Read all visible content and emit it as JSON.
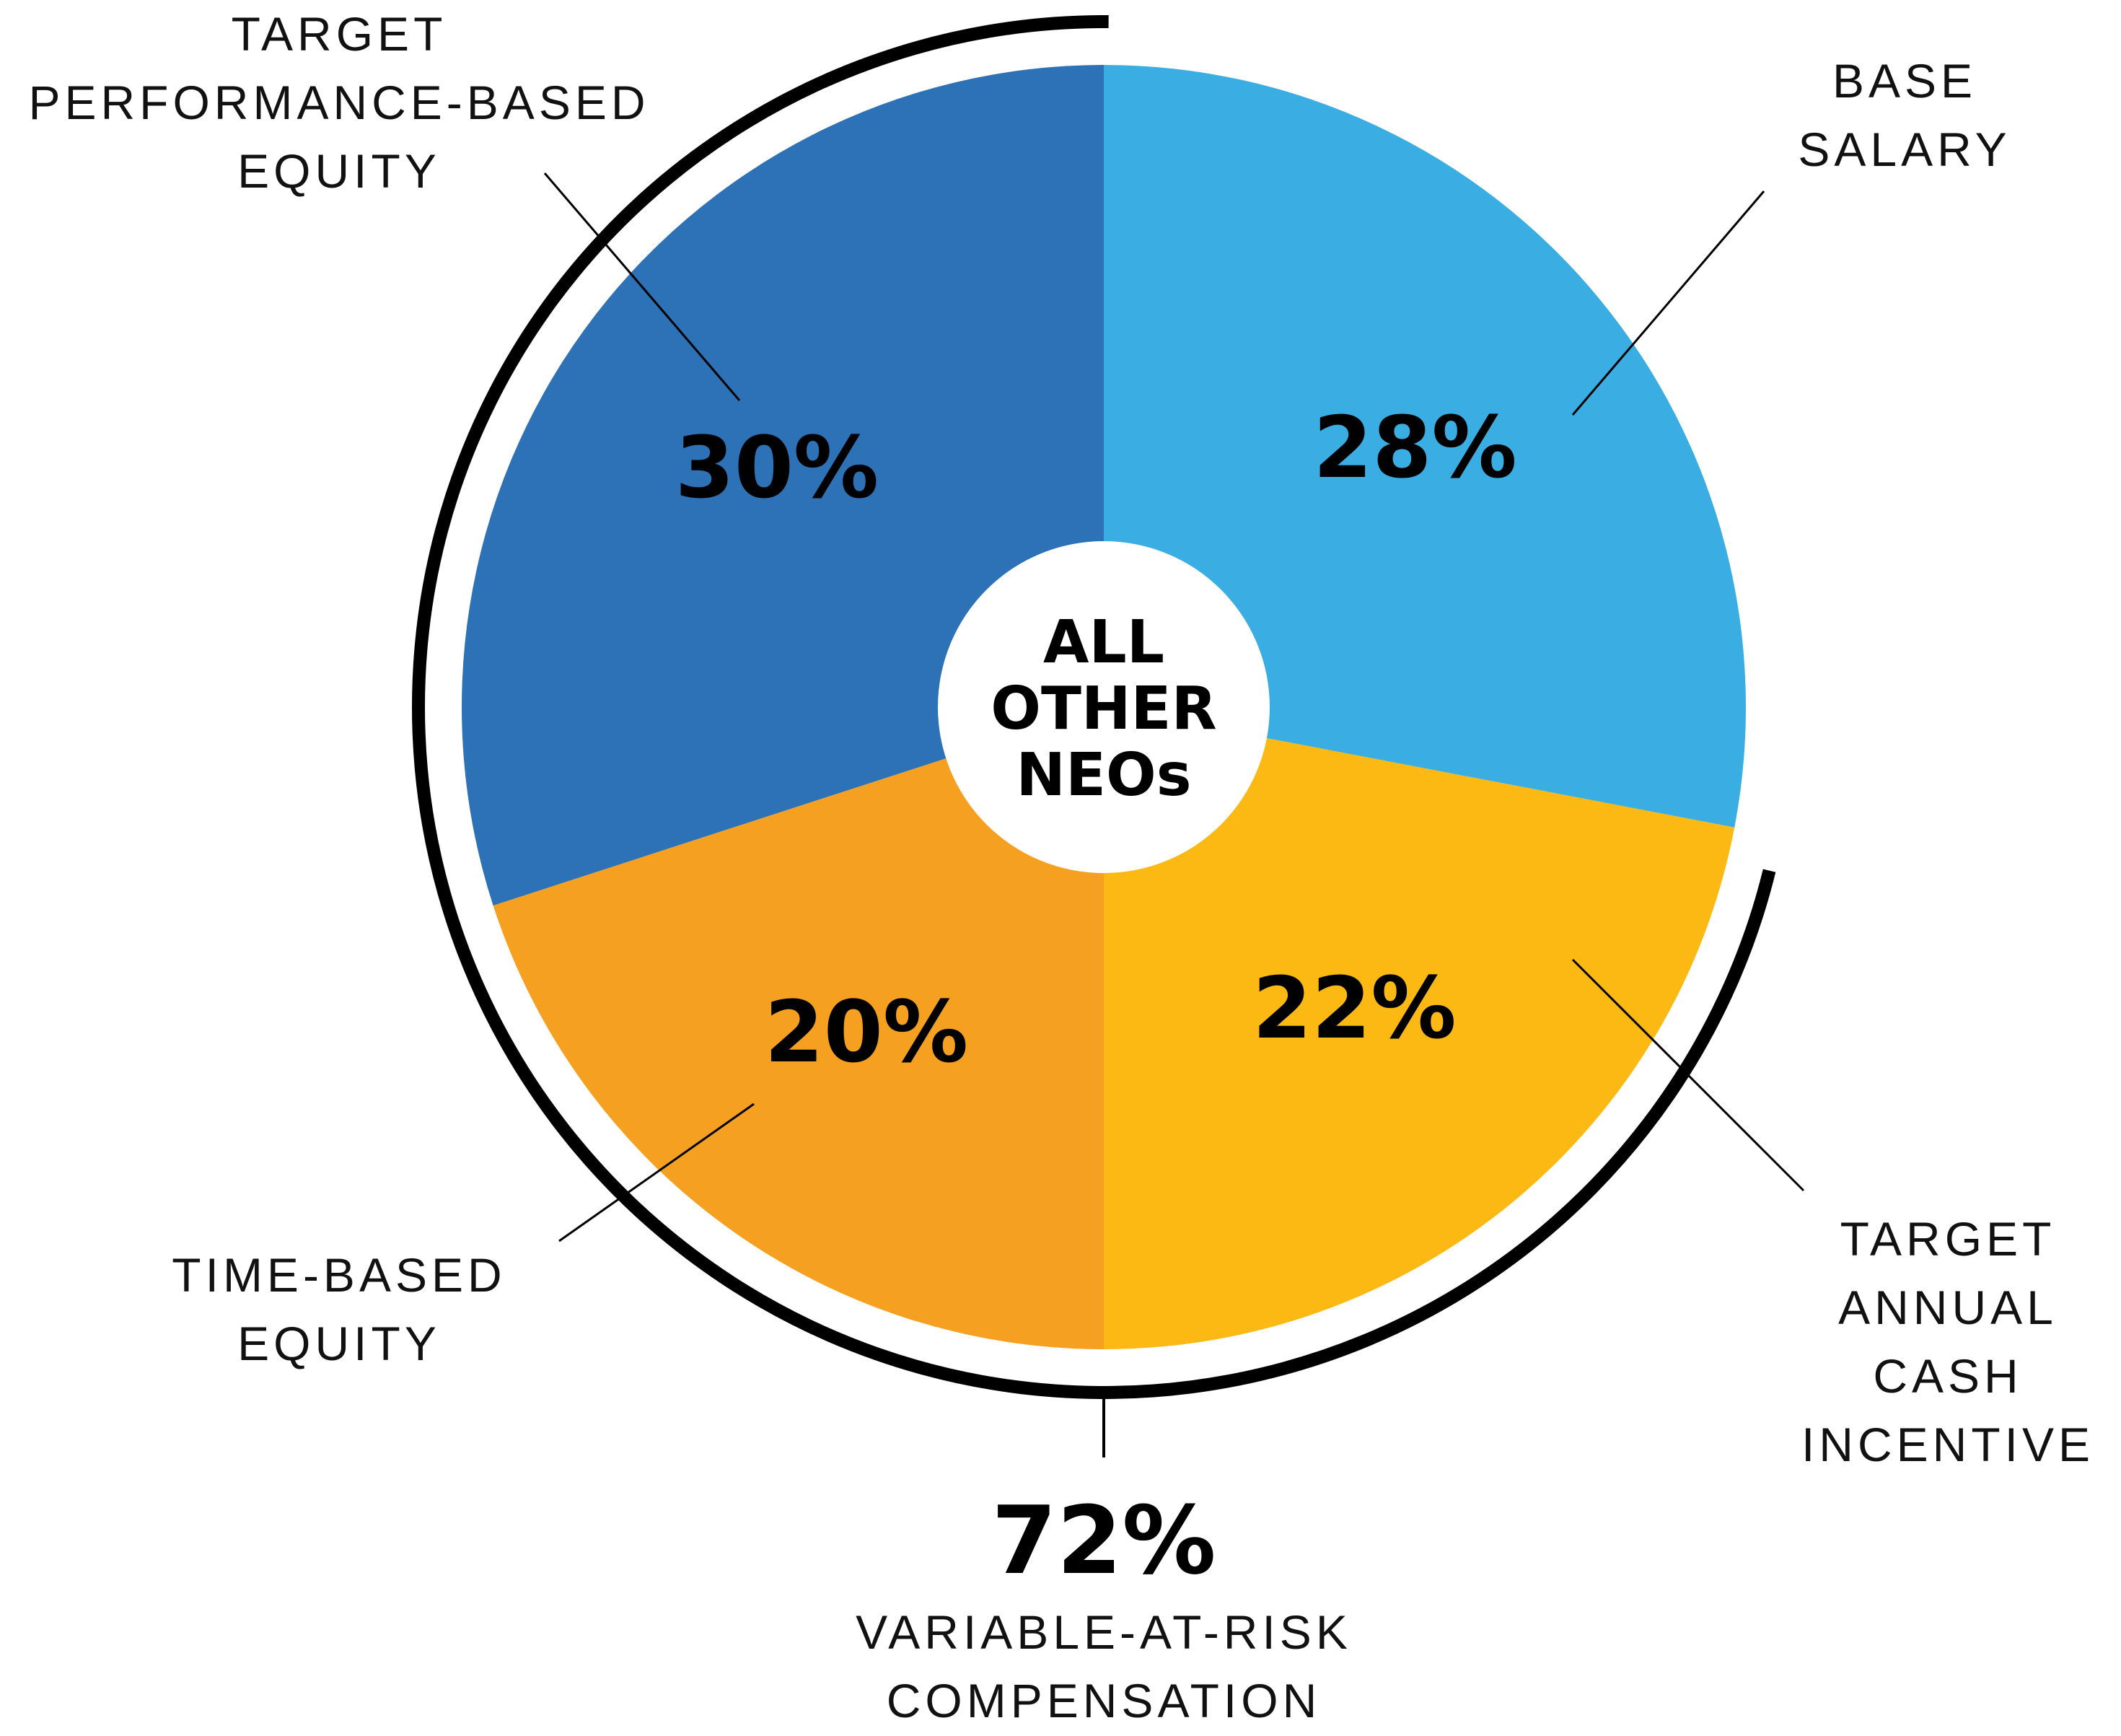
{
  "chart_data": {
    "type": "pie",
    "title": "",
    "center_label": [
      "ALL",
      "OTHER",
      "NEOs"
    ],
    "slices": [
      {
        "category": "BASE SALARY",
        "label_lines": [
          "BASE",
          "SALARY"
        ],
        "value": 28,
        "display": "28%",
        "color": "#3AAEE3"
      },
      {
        "category": "TARGET ANNUAL CASH INCENTIVE",
        "label_lines": [
          "TARGET",
          "ANNUAL",
          "CASH",
          "INCENTIVE"
        ],
        "value": 22,
        "display": "22%",
        "color": "#FDB913"
      },
      {
        "category": "TIME-BASED EQUITY",
        "label_lines": [
          "TIME-BASED",
          "EQUITY"
        ],
        "value": 20,
        "display": "20%",
        "color": "#F6A021"
      },
      {
        "category": "TARGET PERFORMANCE-BASED EQUITY",
        "label_lines": [
          "TARGET",
          "PERFORMANCE-BASED",
          "EQUITY"
        ],
        "value": 30,
        "display": "30%",
        "color": "#2D71B6"
      }
    ],
    "bracket": {
      "value": 72,
      "display": "72%",
      "label_lines": [
        "VARIABLE-AT-RISK",
        "COMPENSATION"
      ],
      "covers": [
        "TARGET ANNUAL CASH INCENTIVE",
        "TIME-BASED EQUITY",
        "TARGET PERFORMANCE-BASED EQUITY"
      ]
    }
  }
}
